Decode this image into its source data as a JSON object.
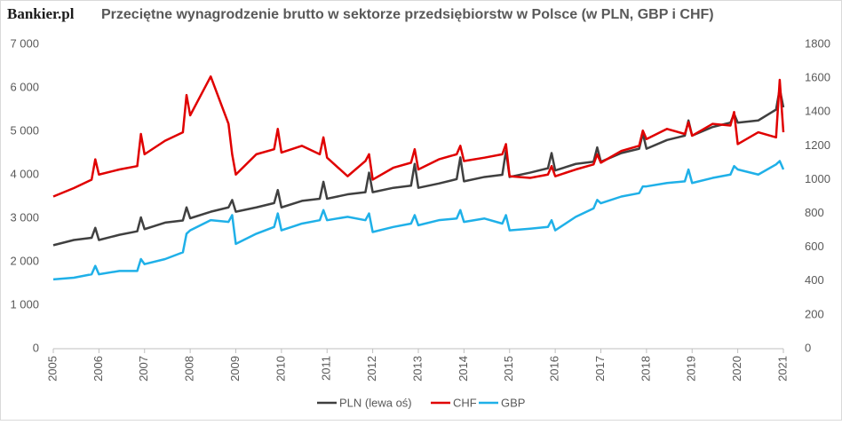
{
  "chart_data": {
    "type": "line",
    "logo": "Bankier.pl",
    "title": "Przeciętne wynagrodzenie brutto w sektorze przedsiębiorstw w Polsce (w PLN, GBP i CHF)",
    "x": [
      2005,
      2005.45,
      2005.84,
      2005.92,
      2006,
      2006.45,
      2006.84,
      2006.92,
      2007,
      2007.45,
      2007.84,
      2007.92,
      2008,
      2008.45,
      2008.84,
      2008.92,
      2009,
      2009.45,
      2009.84,
      2009.92,
      2010,
      2010.45,
      2010.84,
      2010.92,
      2011,
      2011.45,
      2011.84,
      2011.92,
      2012,
      2012.45,
      2012.84,
      2012.92,
      2013,
      2013.45,
      2013.84,
      2013.92,
      2014,
      2014.45,
      2014.84,
      2014.92,
      2015,
      2015.45,
      2015.84,
      2015.92,
      2016,
      2016.45,
      2016.84,
      2016.92,
      2017,
      2017.45,
      2017.84,
      2017.92,
      2018,
      2018.45,
      2018.84,
      2018.92,
      2019,
      2019.45,
      2019.84,
      2019.92,
      2020,
      2020.45,
      2020.84,
      2020.92,
      2021
    ],
    "xlim": [
      2005,
      2021
    ],
    "xticks": [
      2005,
      2006,
      2007,
      2008,
      2009,
      2010,
      2011,
      2012,
      2013,
      2014,
      2015,
      2016,
      2017,
      2018,
      2019,
      2020,
      2021
    ],
    "ylim": [
      0,
      7000
    ],
    "yticks": [
      0,
      {
        "value": 1000,
        "label": "1 000"
      },
      {
        "value": 2000,
        "label": "2 000"
      },
      {
        "value": 3000,
        "label": "3 000"
      },
      {
        "value": 4000,
        "label": "4 000"
      },
      {
        "value": 5000,
        "label": "5 000"
      },
      {
        "value": 6000,
        "label": "6 000"
      },
      {
        "value": 7000,
        "label": "7 000"
      }
    ],
    "y2lim": [
      0,
      1800
    ],
    "y2ticks": [
      0,
      200,
      400,
      600,
      800,
      1000,
      1200,
      1400,
      1600,
      1800
    ],
    "series": [
      {
        "name": "PLN (lewa oś)",
        "color": "#404040",
        "values": [
          2380,
          2500,
          2550,
          2780,
          2500,
          2620,
          2700,
          3020,
          2750,
          2900,
          2950,
          3250,
          3000,
          3150,
          3250,
          3420,
          3150,
          3250,
          3350,
          3650,
          3250,
          3400,
          3450,
          3840,
          3450,
          3550,
          3600,
          4050,
          3600,
          3700,
          3750,
          4250,
          3700,
          3800,
          3900,
          4400,
          3850,
          3950,
          4000,
          4550,
          3950,
          4050,
          4150,
          4500,
          4100,
          4250,
          4300,
          4630,
          4300,
          4500,
          4600,
          4950,
          4600,
          4800,
          4900,
          5250,
          4900,
          5100,
          5200,
          5400,
          5200,
          5250,
          5500,
          5980,
          5550
        ]
      },
      {
        "name": "CHF",
        "color": "#e00000",
        "axis": "y2",
        "values": [
          900,
          950,
          1000,
          1120,
          1030,
          1060,
          1080,
          1270,
          1150,
          1230,
          1280,
          1500,
          1380,
          1610,
          1330,
          1150,
          1030,
          1150,
          1180,
          1300,
          1160,
          1200,
          1150,
          1250,
          1130,
          1020,
          1110,
          1150,
          1000,
          1070,
          1100,
          1180,
          1060,
          1120,
          1150,
          1200,
          1110,
          1130,
          1150,
          1210,
          1020,
          1010,
          1030,
          1080,
          1020,
          1060,
          1090,
          1150,
          1100,
          1170,
          1200,
          1290,
          1240,
          1300,
          1270,
          1340,
          1260,
          1330,
          1320,
          1400,
          1210,
          1280,
          1250,
          1590,
          1280
        ]
      },
      {
        "name": "GBP",
        "color": "#1fb0e8",
        "axis": "y2",
        "values": [
          410,
          420,
          440,
          490,
          440,
          460,
          460,
          530,
          500,
          530,
          570,
          680,
          700,
          760,
          750,
          790,
          620,
          680,
          720,
          800,
          700,
          740,
          760,
          820,
          760,
          780,
          760,
          800,
          690,
          720,
          740,
          790,
          730,
          760,
          770,
          820,
          750,
          770,
          740,
          790,
          700,
          710,
          720,
          760,
          700,
          780,
          830,
          880,
          860,
          900,
          920,
          960,
          960,
          980,
          990,
          1060,
          980,
          1010,
          1030,
          1080,
          1060,
          1030,
          1090,
          1110,
          1060
        ]
      }
    ]
  }
}
